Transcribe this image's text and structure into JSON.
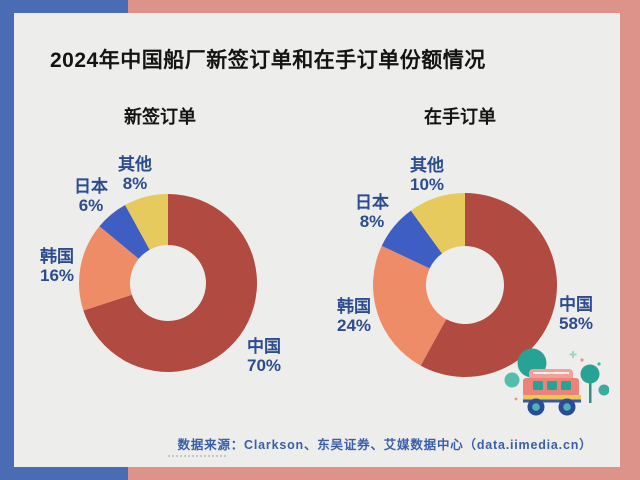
{
  "header": {
    "title": "2024年中国船厂新签订单和在手订单份额情况"
  },
  "footer": {
    "source": "数据来源：Clarkson、东吴证券、艾媒数据中心（data.iimedia.cn）"
  },
  "colors": {
    "frame_blue": "#4a6cb4",
    "frame_pink": "#dd938a",
    "card_bg": "#ededeb",
    "title_text": "#141414",
    "label_text": "#2d4c90",
    "source_text": "#3a5ea9",
    "china_slice": "#b14a41",
    "korea_slice": "#ee8c68",
    "japan_slice": "#3e5ec4",
    "other_slice": "#e7ca5d"
  },
  "chart_data": [
    {
      "type": "pie",
      "subtype": "donut",
      "title": "新签订单",
      "unit": "%",
      "start": "top",
      "direction": "clockwise",
      "slices": [
        {
          "name": "中国",
          "value": 70,
          "display": "70%",
          "color": "#b14a41"
        },
        {
          "name": "韩国",
          "value": 16,
          "display": "16%",
          "color": "#ee8c68"
        },
        {
          "name": "日本",
          "value": 6,
          "display": "6%",
          "color": "#3e5ec4"
        },
        {
          "name": "其他",
          "value": 8,
          "display": "8%",
          "color": "#e7ca5d"
        }
      ]
    },
    {
      "type": "pie",
      "subtype": "donut",
      "title": "在手订单",
      "unit": "%",
      "start": "top",
      "direction": "clockwise",
      "slices": [
        {
          "name": "中国",
          "value": 58,
          "display": "58%",
          "color": "#b14a41"
        },
        {
          "name": "韩国",
          "value": 24,
          "display": "24%",
          "color": "#ee8c68"
        },
        {
          "name": "日本",
          "value": 8,
          "display": "8%",
          "color": "#3e5ec4"
        },
        {
          "name": "其他",
          "value": 10,
          "display": "10%",
          "color": "#e7ca5d"
        }
      ]
    }
  ]
}
